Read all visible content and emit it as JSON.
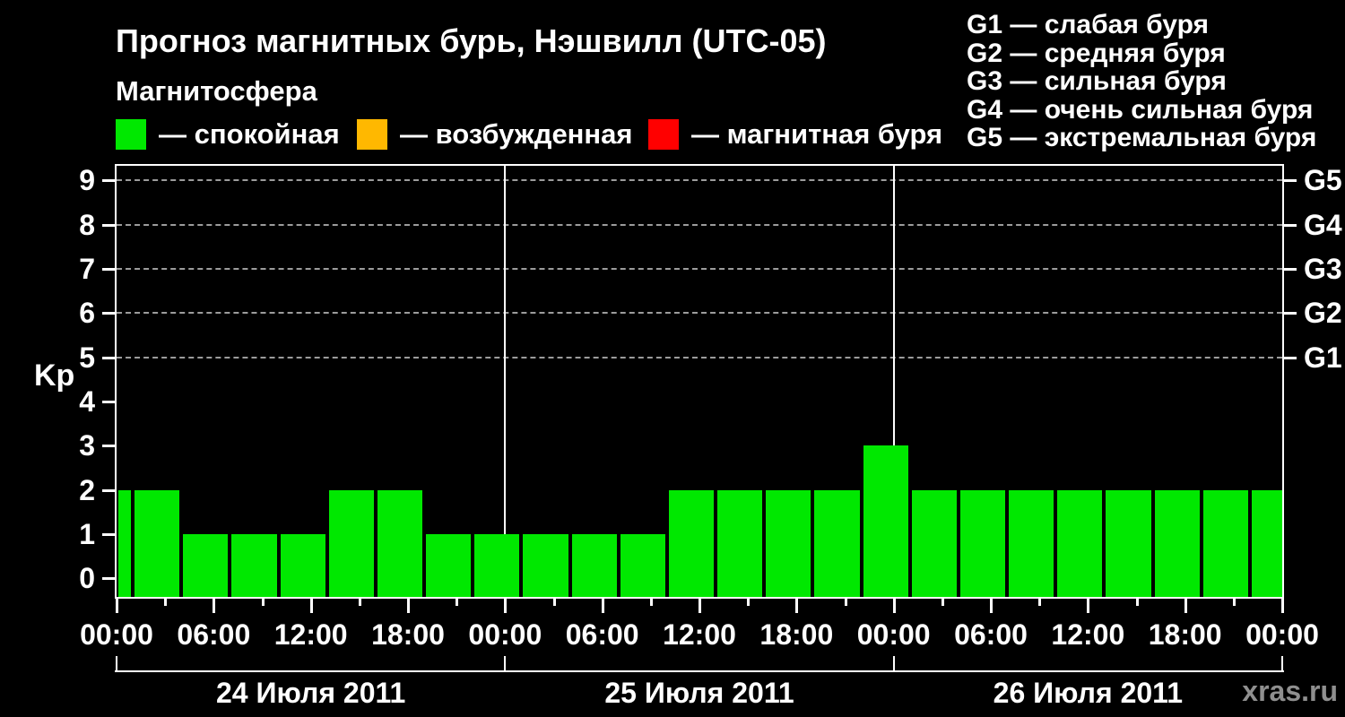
{
  "header": {
    "title": "Прогноз магнитных бурь, Нэшвилл (UTC-05)",
    "subtitle": "Магнитосфера",
    "legend": [
      {
        "label": "— спокойная",
        "color": "#00e800"
      },
      {
        "label": "— возбужденная",
        "color": "#ffb800"
      },
      {
        "label": "— магнитная буря",
        "color": "#ff0000"
      }
    ],
    "g_scale": [
      "G1 — слабая буря",
      "G2 — средняя буря",
      "G3 — сильная буря",
      "G4 — очень сильная буря",
      "G5 — экстремальная буря"
    ]
  },
  "footer": {
    "watermark": "xras.ru"
  },
  "chart_data": {
    "type": "bar",
    "title": "Прогноз магнитных бурь, Нэшвилл (UTC-05)",
    "xlabel": "",
    "ylabel": "Kp",
    "ylim": [
      0,
      9
    ],
    "grid": "dashed horizontal at Kp 5-9 only",
    "legend_position": "top",
    "hours_span": 72,
    "timezone": "UTC-05",
    "y_ticks": [
      0,
      1,
      2,
      3,
      4,
      5,
      6,
      7,
      8,
      9
    ],
    "grid_values": [
      5,
      6,
      7,
      8,
      9
    ],
    "right_axis": [
      {
        "value": 5,
        "label": "G1"
      },
      {
        "value": 6,
        "label": "G2"
      },
      {
        "value": 7,
        "label": "G3"
      },
      {
        "value": 8,
        "label": "G4"
      },
      {
        "value": 9,
        "label": "G5"
      }
    ],
    "x_ticks": [
      {
        "hour": 0,
        "label": "00:00"
      },
      {
        "hour": 6,
        "label": "06:00"
      },
      {
        "hour": 12,
        "label": "12:00"
      },
      {
        "hour": 18,
        "label": "18:00"
      },
      {
        "hour": 24,
        "label": "00:00"
      },
      {
        "hour": 30,
        "label": "06:00"
      },
      {
        "hour": 36,
        "label": "12:00"
      },
      {
        "hour": 42,
        "label": "18:00"
      },
      {
        "hour": 48,
        "label": "00:00"
      },
      {
        "hour": 54,
        "label": "06:00"
      },
      {
        "hour": 60,
        "label": "12:00"
      },
      {
        "hour": 66,
        "label": "18:00"
      },
      {
        "hour": 72,
        "label": "00:00"
      }
    ],
    "x_minor_tick_hours": [
      3,
      9,
      15,
      21,
      27,
      33,
      39,
      45,
      51,
      57,
      63,
      69
    ],
    "day_divider_hours": [
      24,
      48
    ],
    "date_ruler_tick_hours": [
      0,
      24,
      48,
      72
    ],
    "days": [
      {
        "label": "24 Июля 2011",
        "start_hour": 0,
        "end_hour": 24
      },
      {
        "label": "25 Июля 2011",
        "start_hour": 24,
        "end_hour": 48
      },
      {
        "label": "26 Июля 2011",
        "start_hour": 48,
        "end_hour": 72
      }
    ],
    "kp_series": [
      {
        "start_hour": 0,
        "end_hour": 1,
        "kp": 2
      },
      {
        "start_hour": 1,
        "end_hour": 4,
        "kp": 2
      },
      {
        "start_hour": 4,
        "end_hour": 7,
        "kp": 1
      },
      {
        "start_hour": 7,
        "end_hour": 10,
        "kp": 1
      },
      {
        "start_hour": 10,
        "end_hour": 13,
        "kp": 1
      },
      {
        "start_hour": 13,
        "end_hour": 16,
        "kp": 2
      },
      {
        "start_hour": 16,
        "end_hour": 19,
        "kp": 2
      },
      {
        "start_hour": 19,
        "end_hour": 22,
        "kp": 1
      },
      {
        "start_hour": 22,
        "end_hour": 25,
        "kp": 1
      },
      {
        "start_hour": 25,
        "end_hour": 28,
        "kp": 1
      },
      {
        "start_hour": 28,
        "end_hour": 31,
        "kp": 1
      },
      {
        "start_hour": 31,
        "end_hour": 34,
        "kp": 1
      },
      {
        "start_hour": 34,
        "end_hour": 37,
        "kp": 2
      },
      {
        "start_hour": 37,
        "end_hour": 40,
        "kp": 2
      },
      {
        "start_hour": 40,
        "end_hour": 43,
        "kp": 2
      },
      {
        "start_hour": 43,
        "end_hour": 46,
        "kp": 2
      },
      {
        "start_hour": 46,
        "end_hour": 49,
        "kp": 3
      },
      {
        "start_hour": 49,
        "end_hour": 52,
        "kp": 2
      },
      {
        "start_hour": 52,
        "end_hour": 55,
        "kp": 2
      },
      {
        "start_hour": 55,
        "end_hour": 58,
        "kp": 2
      },
      {
        "start_hour": 58,
        "end_hour": 61,
        "kp": 2
      },
      {
        "start_hour": 61,
        "end_hour": 64,
        "kp": 2
      },
      {
        "start_hour": 64,
        "end_hour": 67,
        "kp": 2
      },
      {
        "start_hour": 67,
        "end_hour": 70,
        "kp": 2
      },
      {
        "start_hour": 70,
        "end_hour": 72,
        "kp": 2
      }
    ],
    "colors": {
      "quiet": "#00e800",
      "excited": "#ffb800",
      "storm": "#ff0000",
      "grid": "#9c9c9c",
      "axis": "#ffffff",
      "watermark": "#8f8f8f",
      "background": "#000000"
    }
  }
}
